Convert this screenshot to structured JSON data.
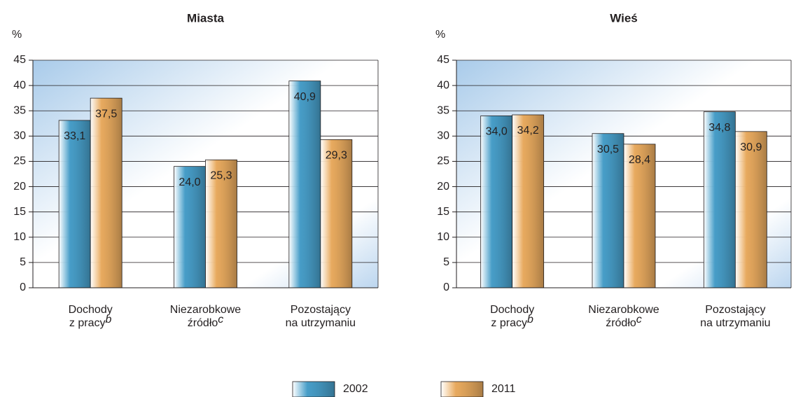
{
  "chart_data": [
    {
      "type": "bar",
      "title": "Miasta",
      "ylabel": "%",
      "categories": [
        [
          "Dochody",
          "z pracy"
        ],
        [
          "Niezarobkowe",
          "źródło"
        ],
        [
          "Pozostający",
          "na utrzymaniu"
        ]
      ],
      "category_footnotes": [
        "b",
        "c",
        null
      ],
      "series": [
        {
          "name": "2002",
          "color": "#4aa3cf",
          "values": [
            33.1,
            24.0,
            40.9
          ],
          "value_labels": [
            "33,1",
            "24,0",
            "40,9"
          ]
        },
        {
          "name": "2011",
          "color": "#f0b062",
          "values": [
            37.5,
            25.3,
            29.3
          ],
          "value_labels": [
            "37,5",
            "25,3",
            "29,3"
          ]
        }
      ],
      "ylim": [
        0,
        45
      ],
      "yticks": [
        0,
        5,
        10,
        15,
        20,
        25,
        30,
        35,
        40,
        45
      ],
      "grid": true
    },
    {
      "type": "bar",
      "title": "Wieś",
      "ylabel": "%",
      "categories": [
        [
          "Dochody",
          "z pracy"
        ],
        [
          "Niezarobkowe",
          "źródło"
        ],
        [
          "Pozostający",
          "na utrzymaniu"
        ]
      ],
      "category_footnotes": [
        "b",
        "c",
        null
      ],
      "series": [
        {
          "name": "2002",
          "color": "#4aa3cf",
          "values": [
            34.0,
            30.5,
            34.8
          ],
          "value_labels": [
            "34,0",
            "30,5",
            "34,8"
          ]
        },
        {
          "name": "2011",
          "color": "#f0b062",
          "values": [
            34.2,
            28.4,
            30.9
          ],
          "value_labels": [
            "34,2",
            "28,4",
            "30,9"
          ]
        }
      ],
      "ylim": [
        0,
        45
      ],
      "yticks": [
        0,
        5,
        10,
        15,
        20,
        25,
        30,
        35,
        40,
        45
      ],
      "grid": true
    }
  ]
}
